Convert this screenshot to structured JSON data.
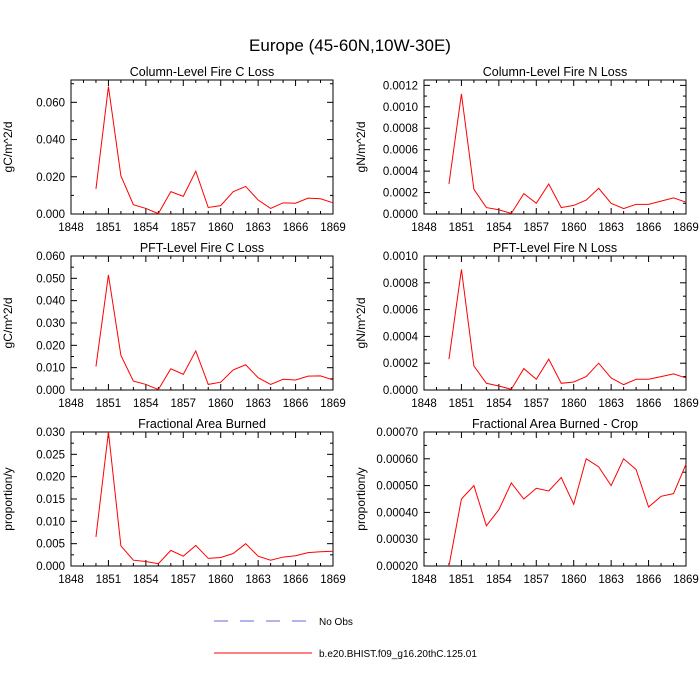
{
  "title": "Europe (45-60N,10W-30E)",
  "colors": {
    "model": "#ff0000",
    "obs": "#6a6ad8",
    "axis": "#000000"
  },
  "legend": {
    "entries": [
      {
        "label": "No Obs",
        "style": "dashed",
        "color": "#6a6ad8"
      },
      {
        "label": "b.e20.BHIST.f09_g16.20thC.125.01",
        "style": "solid",
        "color": "#ff0000"
      }
    ]
  },
  "chart_data": [
    {
      "type": "line",
      "title": "Column-Level Fire C Loss",
      "ylabel": "gC/m^2/d",
      "xlim": [
        1848,
        1869
      ],
      "xticks": [
        "1848",
        "1851",
        "1854",
        "1857",
        "1860",
        "1863",
        "1866",
        "1869"
      ],
      "ylim": [
        0,
        0.072
      ],
      "yticks": [
        "0.000",
        "0.020",
        "0.040",
        "0.060"
      ],
      "x": [
        1850,
        1851,
        1852,
        1853,
        1854,
        1855,
        1856,
        1857,
        1858,
        1859,
        1860,
        1861,
        1862,
        1863,
        1864,
        1865,
        1866,
        1867,
        1868,
        1869
      ],
      "series": [
        {
          "values": [
            0.0135,
            0.0685,
            0.0205,
            0.005,
            0.003,
            0.0002,
            0.012,
            0.0095,
            0.023,
            0.0035,
            0.0045,
            0.012,
            0.0148,
            0.0075,
            0.003,
            0.006,
            0.0058,
            0.0085,
            0.0082,
            0.006
          ]
        }
      ]
    },
    {
      "type": "line",
      "title": "Column-Level Fire N Loss",
      "ylabel": "gN/m^2/d",
      "xlim": [
        1848,
        1869
      ],
      "xticks": [
        "1848",
        "1851",
        "1854",
        "1857",
        "1860",
        "1863",
        "1866",
        "1869"
      ],
      "ylim": [
        0,
        0.00125
      ],
      "yticks": [
        "0.0000",
        "0.0002",
        "0.0004",
        "0.0006",
        "0.0008",
        "0.0010",
        "0.0012"
      ],
      "x": [
        1850,
        1851,
        1852,
        1853,
        1854,
        1855,
        1856,
        1857,
        1858,
        1859,
        1860,
        1861,
        1862,
        1863,
        1864,
        1865,
        1866,
        1867,
        1868,
        1869
      ],
      "series": [
        {
          "values": [
            0.00028,
            0.00112,
            0.00023,
            6e-05,
            4e-05,
            5e-06,
            0.00019,
            0.0001,
            0.00028,
            6e-05,
            8e-05,
            0.00013,
            0.00024,
            0.0001,
            5e-05,
            9e-05,
            9e-05,
            0.00012,
            0.00015,
            0.00011
          ]
        }
      ]
    },
    {
      "type": "line",
      "title": "PFT-Level Fire C Loss",
      "ylabel": "gC/m^2/d",
      "xlim": [
        1848,
        1869
      ],
      "xticks": [
        "1848",
        "1851",
        "1854",
        "1857",
        "1860",
        "1863",
        "1866",
        "1869"
      ],
      "ylim": [
        0,
        0.06
      ],
      "yticks": [
        "0.000",
        "0.010",
        "0.020",
        "0.030",
        "0.040",
        "0.050",
        "0.060"
      ],
      "x": [
        1850,
        1851,
        1852,
        1853,
        1854,
        1855,
        1856,
        1857,
        1858,
        1859,
        1860,
        1861,
        1862,
        1863,
        1864,
        1865,
        1866,
        1867,
        1868,
        1869
      ],
      "series": [
        {
          "values": [
            0.0105,
            0.0515,
            0.0155,
            0.004,
            0.0025,
            0.0002,
            0.0095,
            0.007,
            0.0175,
            0.0025,
            0.0035,
            0.009,
            0.0113,
            0.0055,
            0.0025,
            0.0048,
            0.0045,
            0.0062,
            0.0063,
            0.0045
          ]
        }
      ]
    },
    {
      "type": "line",
      "title": "PFT-Level Fire N Loss",
      "ylabel": "gN/m^2/d",
      "xlim": [
        1848,
        1869
      ],
      "xticks": [
        "1848",
        "1851",
        "1854",
        "1857",
        "1860",
        "1863",
        "1866",
        "1869"
      ],
      "ylim": [
        0,
        0.001
      ],
      "yticks": [
        "0.0000",
        "0.0002",
        "0.0004",
        "0.0006",
        "0.0008",
        "0.0010"
      ],
      "x": [
        1850,
        1851,
        1852,
        1853,
        1854,
        1855,
        1856,
        1857,
        1858,
        1859,
        1860,
        1861,
        1862,
        1863,
        1864,
        1865,
        1866,
        1867,
        1868,
        1869
      ],
      "series": [
        {
          "values": [
            0.00023,
            0.0009,
            0.00018,
            5e-05,
            3e-05,
            5e-06,
            0.00016,
            8e-05,
            0.00023,
            5e-05,
            6e-05,
            0.0001,
            0.0002,
            9e-05,
            4e-05,
            8e-05,
            8e-05,
            0.0001,
            0.00012,
            9e-05
          ]
        }
      ]
    },
    {
      "type": "line",
      "title": "Fractional Area Burned",
      "ylabel": "proportion/y",
      "xlim": [
        1848,
        1869
      ],
      "xticks": [
        "1848",
        "1851",
        "1854",
        "1857",
        "1860",
        "1863",
        "1866",
        "1869"
      ],
      "ylim": [
        0,
        0.03
      ],
      "yticks": [
        "0.000",
        "0.005",
        "0.010",
        "0.015",
        "0.020",
        "0.025",
        "0.030"
      ],
      "x": [
        1850,
        1851,
        1852,
        1853,
        1854,
        1855,
        1856,
        1857,
        1858,
        1859,
        1860,
        1861,
        1862,
        1863,
        1864,
        1865,
        1866,
        1867,
        1868,
        1869
      ],
      "series": [
        {
          "values": [
            0.0065,
            0.03,
            0.0045,
            0.0013,
            0.001,
            0.0005,
            0.0035,
            0.0022,
            0.0046,
            0.0017,
            0.0019,
            0.0028,
            0.005,
            0.0022,
            0.0013,
            0.002,
            0.0023,
            0.003,
            0.0032,
            0.0033
          ]
        }
      ]
    },
    {
      "type": "line",
      "title": "Fractional Area Burned - Crop",
      "ylabel": "proportion/y",
      "xlim": [
        1848,
        1869
      ],
      "xticks": [
        "1848",
        "1851",
        "1854",
        "1857",
        "1860",
        "1863",
        "1866",
        "1869"
      ],
      "ylim": [
        0.0002,
        0.0007
      ],
      "yticks": [
        "0.00020",
        "0.00030",
        "0.00040",
        "0.00050",
        "0.00060",
        "0.00070"
      ],
      "x": [
        1850,
        1851,
        1852,
        1853,
        1854,
        1855,
        1856,
        1857,
        1858,
        1859,
        1860,
        1861,
        1862,
        1863,
        1864,
        1865,
        1866,
        1867,
        1868,
        1869
      ],
      "series": [
        {
          "values": [
            0.0002,
            0.00045,
            0.0005,
            0.00035,
            0.00041,
            0.00051,
            0.00045,
            0.00049,
            0.00048,
            0.00053,
            0.00043,
            0.0006,
            0.00057,
            0.0005,
            0.0006,
            0.00056,
            0.00042,
            0.00046,
            0.00047,
            0.00058
          ]
        }
      ]
    }
  ]
}
